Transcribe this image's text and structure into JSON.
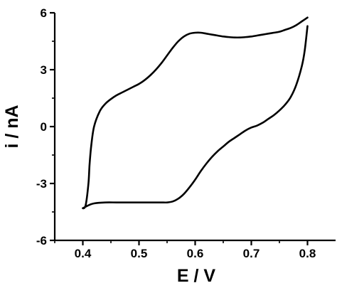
{
  "chart_data": {
    "type": "line",
    "title": "",
    "xlabel": "E / V",
    "ylabel": "i / nA",
    "xlim": [
      0.35,
      0.85
    ],
    "ylim": [
      -6,
      6
    ],
    "xticks": [
      0.4,
      0.5,
      0.6,
      0.7,
      0.8
    ],
    "yticks": [
      -6,
      -3,
      0,
      3,
      6
    ],
    "x_tick_labels": [
      "0.4",
      "0.5",
      "0.6",
      "0.7",
      "0.8"
    ],
    "y_tick_labels": [
      "-6",
      "-3",
      "0",
      "3",
      "6"
    ],
    "grid": false,
    "legend": "none",
    "color": "#000000",
    "series": [
      {
        "x": [
          0.8,
          0.795,
          0.79,
          0.78,
          0.77,
          0.76,
          0.75,
          0.74,
          0.73,
          0.72,
          0.71,
          0.7,
          0.69,
          0.68,
          0.67,
          0.66,
          0.65,
          0.64,
          0.63,
          0.62,
          0.61,
          0.6,
          0.59,
          0.58,
          0.57,
          0.56,
          0.55,
          0.54,
          0.53,
          0.52,
          0.51,
          0.5,
          0.48,
          0.46,
          0.44,
          0.42,
          0.41,
          0.4,
          0.405,
          0.41,
          0.412,
          0.415,
          0.42,
          0.43,
          0.44,
          0.45,
          0.46,
          0.47,
          0.48,
          0.49,
          0.5,
          0.51,
          0.52,
          0.53,
          0.54,
          0.55,
          0.56,
          0.57,
          0.58,
          0.59,
          0.6,
          0.61,
          0.62,
          0.63,
          0.64,
          0.65,
          0.66,
          0.67,
          0.68,
          0.69,
          0.7,
          0.71,
          0.72,
          0.73,
          0.74,
          0.75,
          0.76,
          0.77,
          0.78,
          0.79,
          0.8
        ],
        "y": [
          5.3,
          4.0,
          3.2,
          2.2,
          1.55,
          1.15,
          0.85,
          0.6,
          0.4,
          0.2,
          0.05,
          -0.05,
          -0.2,
          -0.4,
          -0.6,
          -0.8,
          -1.05,
          -1.3,
          -1.6,
          -1.95,
          -2.35,
          -2.8,
          -3.2,
          -3.55,
          -3.8,
          -3.95,
          -4.0,
          -4.0,
          -4.0,
          -4.0,
          -4.0,
          -4.0,
          -4.0,
          -4.0,
          -4.0,
          -4.05,
          -4.15,
          -4.3,
          -4.15,
          -3.0,
          -2.0,
          -1.0,
          0.0,
          0.8,
          1.2,
          1.45,
          1.65,
          1.8,
          1.95,
          2.1,
          2.25,
          2.45,
          2.7,
          3.0,
          3.35,
          3.75,
          4.15,
          4.5,
          4.75,
          4.9,
          4.95,
          4.95,
          4.9,
          4.85,
          4.8,
          4.75,
          4.72,
          4.7,
          4.7,
          4.72,
          4.75,
          4.8,
          4.85,
          4.9,
          4.95,
          5.0,
          5.1,
          5.2,
          5.35,
          5.55,
          5.75
        ]
      }
    ]
  }
}
